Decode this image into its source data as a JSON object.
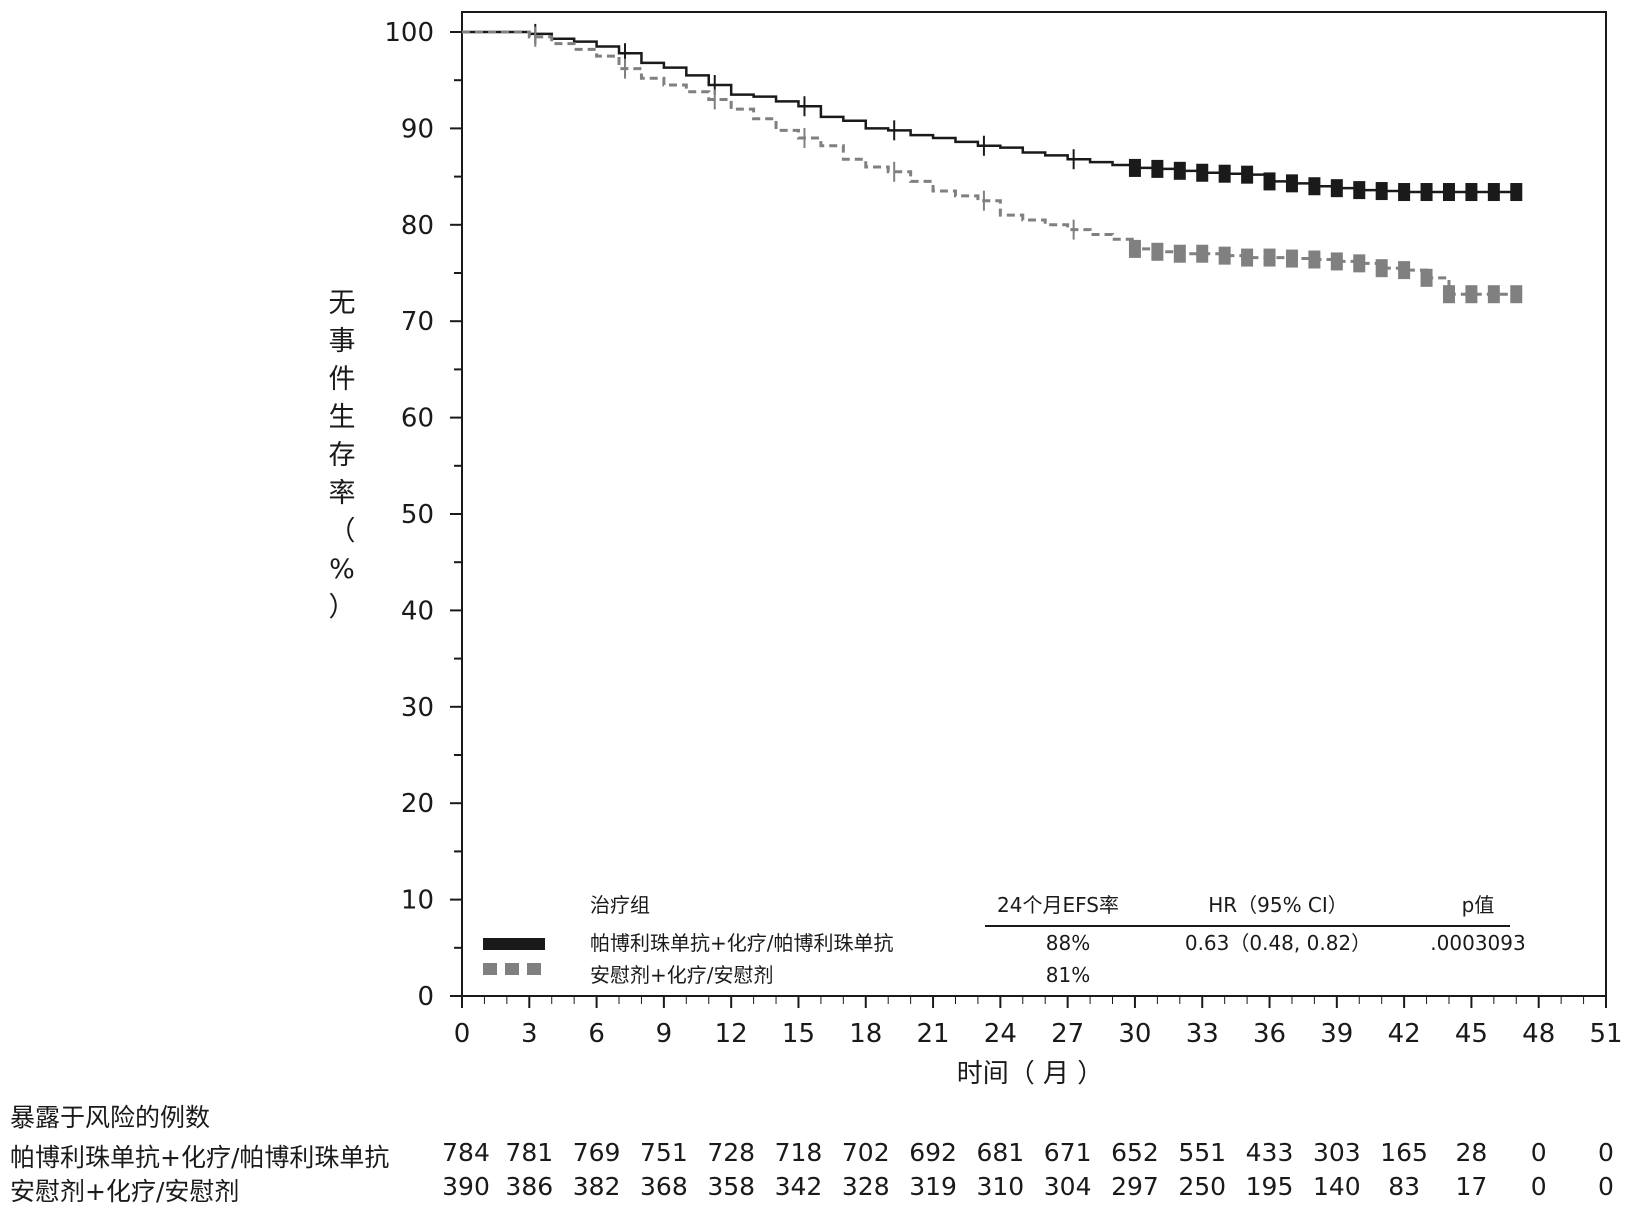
{
  "chart_data": {
    "type": "line",
    "ylabel_chars": [
      "无",
      "事",
      "件",
      "生",
      "存",
      "率",
      "（",
      "%",
      "）"
    ],
    "xlabel": "时间（ 月 ）",
    "xlim": [
      0,
      51
    ],
    "ylim": [
      0,
      100
    ],
    "x_ticks": [
      0,
      3,
      6,
      9,
      12,
      15,
      18,
      21,
      24,
      27,
      30,
      33,
      36,
      39,
      42,
      45,
      48,
      51
    ],
    "y_ticks": [
      0,
      10,
      20,
      30,
      40,
      50,
      60,
      70,
      80,
      90,
      100
    ],
    "series": [
      {
        "name": "帕博利珠单抗+化疗/帕博利珠单抗",
        "color": "#1a1a1a",
        "style": "solid",
        "x": [
          0,
          3,
          4,
          5,
          6,
          7,
          8,
          9,
          10,
          11,
          12,
          13,
          14,
          15,
          16,
          17,
          18,
          19,
          20,
          21,
          22,
          23,
          24,
          25,
          26,
          27,
          28,
          29,
          30,
          31,
          32,
          33,
          34,
          35,
          36,
          37,
          38,
          39,
          40,
          41,
          42,
          43,
          44,
          45,
          46,
          47
        ],
        "y": [
          100,
          99.8,
          99.3,
          99,
          98.5,
          97.8,
          96.8,
          96.3,
          95.5,
          94.5,
          93.5,
          93.3,
          92.8,
          92.3,
          91.2,
          90.8,
          90,
          89.8,
          89.3,
          89,
          88.6,
          88.2,
          88,
          87.5,
          87.2,
          86.8,
          86.5,
          86.2,
          85.9,
          85.8,
          85.6,
          85.4,
          85.3,
          85.2,
          84.5,
          84.3,
          84,
          83.8,
          83.6,
          83.5,
          83.4,
          83.4,
          83.4,
          83.4,
          83.4,
          83.4
        ]
      },
      {
        "name": "安慰剂+化疗/安慰剂",
        "color": "#808080",
        "style": "dashed",
        "x": [
          0,
          3,
          4,
          5,
          6,
          7,
          8,
          9,
          10,
          11,
          12,
          13,
          14,
          15,
          16,
          17,
          18,
          19,
          20,
          21,
          22,
          23,
          24,
          25,
          26,
          27,
          28,
          29,
          30,
          31,
          32,
          33,
          34,
          35,
          36,
          37,
          38,
          39,
          40,
          41,
          42,
          43,
          44,
          45,
          46,
          47
        ],
        "y": [
          100,
          99.5,
          98.8,
          98.2,
          97.5,
          96.2,
          95.2,
          94.5,
          93.8,
          93,
          92,
          91,
          89.8,
          89,
          88.2,
          86.8,
          86,
          85.5,
          84.5,
          83.5,
          83,
          82.5,
          81,
          80.5,
          80,
          79.5,
          79,
          78.5,
          77.5,
          77.2,
          77,
          77,
          76.8,
          76.6,
          76.6,
          76.5,
          76.4,
          76.2,
          76,
          75.5,
          75.3,
          74.5,
          72.8,
          72.8,
          72.8,
          72.8
        ]
      }
    ],
    "legend": {
      "header": "治疗组",
      "col_efs": "24个月EFS率",
      "col_hr": "HR（95% CI）",
      "col_p": "p值",
      "rows": [
        {
          "name": "帕博利珠单抗+化疗/帕博利珠单抗",
          "efs": "88%",
          "hr": "0.63（0.48, 0.82）",
          "p": ".0003093"
        },
        {
          "name": "安慰剂+化疗/安慰剂",
          "efs": "81%",
          "hr": "",
          "p": ""
        }
      ]
    },
    "risk_table": {
      "title": "暴露于风险的例数",
      "rows": [
        {
          "name": "帕博利珠单抗+化疗/帕博利珠单抗",
          "values": [
            "784",
            "781",
            "769",
            "751",
            "728",
            "718",
            "702",
            "692",
            "681",
            "671",
            "652",
            "551",
            "433",
            "303",
            "165",
            "28",
            "0",
            "0"
          ]
        },
        {
          "name": "安慰剂+化疗/安慰剂",
          "values": [
            "390",
            "386",
            "382",
            "368",
            "358",
            "342",
            "328",
            "319",
            "310",
            "304",
            "297",
            "250",
            "195",
            "140",
            "83",
            "17",
            "0",
            "0"
          ]
        }
      ]
    }
  }
}
